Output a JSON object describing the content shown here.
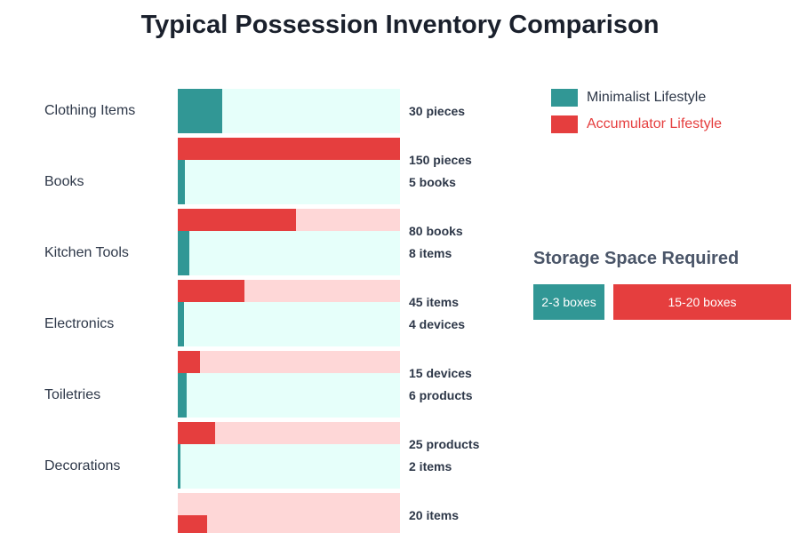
{
  "chart_data": {
    "type": "bar",
    "title": "Typical Possession Inventory Comparison",
    "categories": [
      "Clothing Items",
      "Books",
      "Kitchen Tools",
      "Electronics",
      "Toiletries",
      "Decorations"
    ],
    "xlim": [
      0,
      150
    ],
    "series": [
      {
        "name": "Minimalist Lifestyle",
        "color": "#319795",
        "values": [
          30,
          5,
          8,
          4,
          6,
          2
        ],
        "labels": [
          "30 pieces",
          "5 books",
          "8 items",
          "4 devices",
          "6 products",
          "2 items"
        ]
      },
      {
        "name": "Accumulator Lifestyle",
        "color": "#e53e3e",
        "values": [
          150,
          80,
          45,
          15,
          25,
          20
        ],
        "labels": [
          "150 pieces",
          "80 books",
          "45 items",
          "15 devices",
          "25 products",
          "20 items"
        ]
      }
    ],
    "legend": "top-right"
  },
  "storage": {
    "title": "Storage Space Required",
    "minimalist": "2-3 boxes",
    "accumulator": "15-20 boxes"
  },
  "colors": {
    "teal": "#319795",
    "teal_bg": "#e6fffa",
    "red": "#e53e3e",
    "red_bg": "#fed7d7",
    "legend_accumulator_text": "#e53e3e"
  }
}
